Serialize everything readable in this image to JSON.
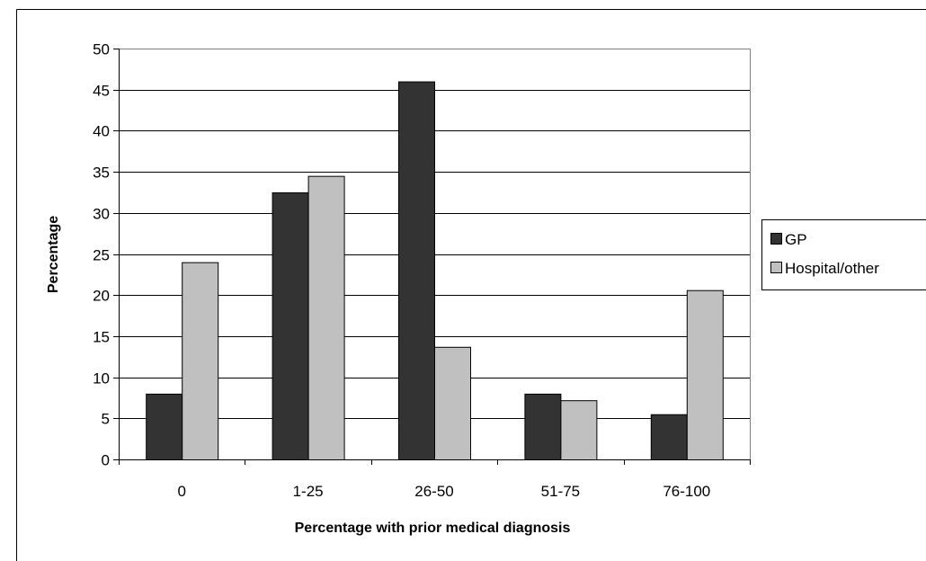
{
  "chart_data": {
    "type": "bar",
    "title": "",
    "xlabel": "Percentage with prior medical diagnosis",
    "ylabel": "Percentage",
    "categories": [
      "0",
      "1-25",
      "26-50",
      "51-75",
      "76-100"
    ],
    "series": [
      {
        "name": "GP",
        "values": [
          8,
          32.5,
          46,
          8,
          5.5
        ],
        "color": "#333333"
      },
      {
        "name": "Hospital/other",
        "values": [
          24,
          34.5,
          13.7,
          7.2,
          20.6
        ],
        "color": "#c0c0c0"
      }
    ],
    "ylim": [
      0,
      50
    ],
    "yticks": [
      0,
      5,
      10,
      15,
      20,
      25,
      30,
      35,
      40,
      45,
      50
    ],
    "grid": true,
    "legend_position": "right"
  }
}
